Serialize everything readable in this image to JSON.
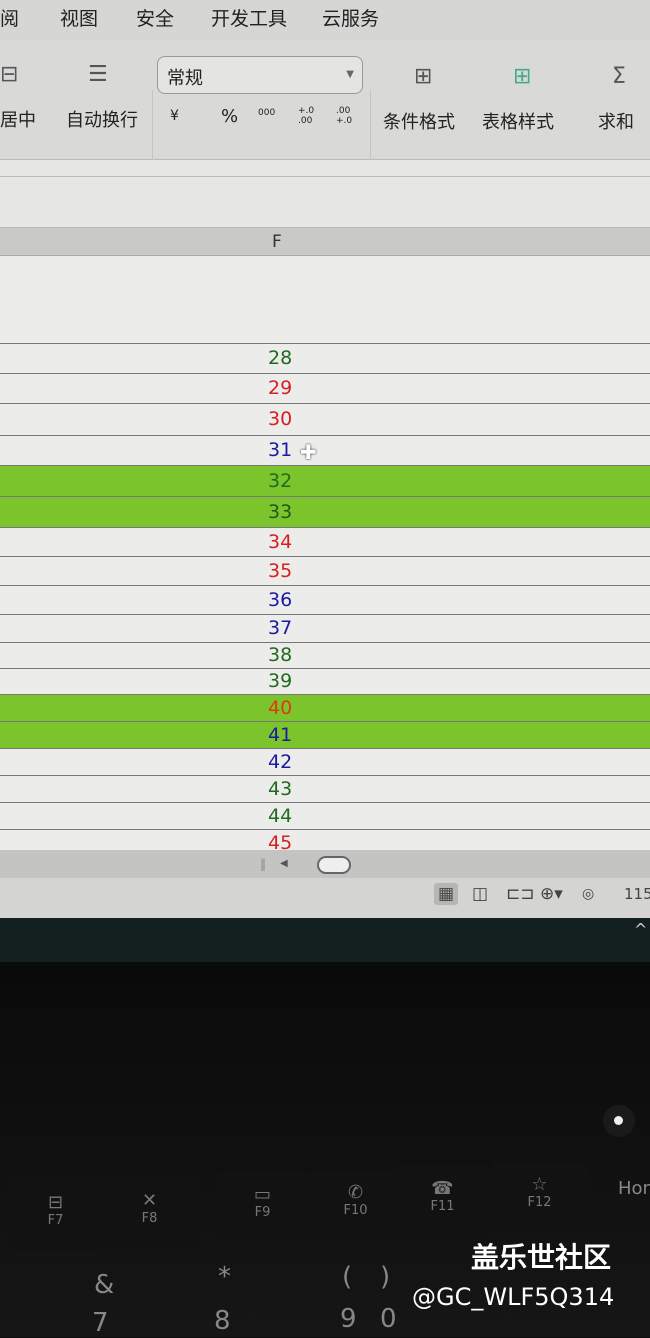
{
  "menu": [
    "阅",
    "视图",
    "安全",
    "开发工具",
    "云服务"
  ],
  "ribbon": {
    "merge_center": "居中",
    "wrap_text": "自动换行",
    "number_format": "常规",
    "currency": "¥",
    "percent": "%",
    "thousands": "000",
    "inc_decimal": "+.0 .00",
    "dec_decimal": ".00 +.0",
    "conditional_format": "条件格式",
    "table_style": "表格样式",
    "sum": "求和"
  },
  "column_header": "F",
  "rows": [
    {
      "value": "28",
      "color": "#1e6b1e",
      "highlight": false
    },
    {
      "value": "29",
      "color": "#d42020",
      "highlight": false
    },
    {
      "value": "30",
      "color": "#d42020",
      "highlight": false
    },
    {
      "value": "31",
      "color": "#1a1aa0",
      "highlight": false
    },
    {
      "value": "32",
      "color": "#1e6b1e",
      "highlight": true
    },
    {
      "value": "33",
      "color": "#1e5a1e",
      "highlight": true
    },
    {
      "value": "34",
      "color": "#d42020",
      "highlight": false
    },
    {
      "value": "35",
      "color": "#d42020",
      "highlight": false
    },
    {
      "value": "36",
      "color": "#1a1aa0",
      "highlight": false
    },
    {
      "value": "37",
      "color": "#1a1aa0",
      "highlight": false
    },
    {
      "value": "38",
      "color": "#1e6b1e",
      "highlight": false
    },
    {
      "value": "39",
      "color": "#1e6b1e",
      "highlight": false
    },
    {
      "value": "40",
      "color": "#e03a10",
      "highlight": true
    },
    {
      "value": "41",
      "color": "#1a1aa0",
      "highlight": true
    },
    {
      "value": "42",
      "color": "#1a1aa0",
      "highlight": false
    },
    {
      "value": "43",
      "color": "#1e6b1e",
      "highlight": false
    },
    {
      "value": "44",
      "color": "#1e6b1e",
      "highlight": false
    },
    {
      "value": "45",
      "color": "#d42020",
      "highlight": false
    }
  ],
  "highlight_color": "#7cc42c",
  "status": {
    "zoom": "115"
  },
  "keyboard": {
    "fkeys": [
      {
        "label": "F7",
        "icon": "⊟"
      },
      {
        "label": "F8",
        "icon": "✕"
      },
      {
        "label": "F9",
        "icon": "▭"
      },
      {
        "label": "F10",
        "icon": "✆"
      },
      {
        "label": "F11",
        "icon": "☎"
      },
      {
        "label": "F12",
        "icon": "☆"
      }
    ],
    "home": "Hom",
    "num_keys": [
      "&",
      "7",
      "*",
      "8",
      "(",
      "9",
      ")",
      "0"
    ]
  },
  "watermark": {
    "title": "盖乐世社区",
    "user": "@GC_WLF5Q314"
  }
}
